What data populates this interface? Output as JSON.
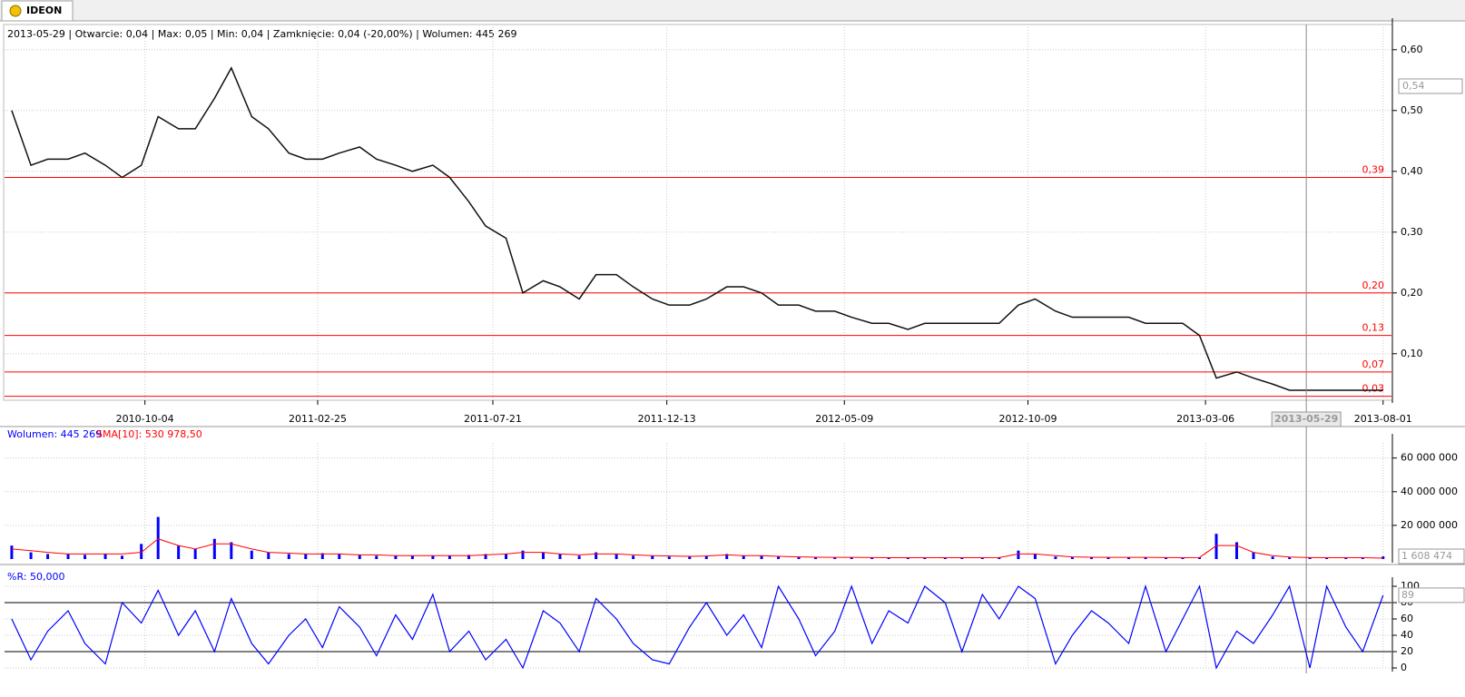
{
  "tab": {
    "title": "IDEON"
  },
  "chart_data": [
    {
      "type": "line",
      "title": "2013-05-29 | Otwarcie: 0,04 | Max: 0,05 | Min: 0,04 | Zamknięcie: 0,04 (-20,00%)  | Wolumen: 445 269",
      "color": "#111111",
      "x": [
        "2010-06-15",
        "2010-07-01",
        "2010-07-15",
        "2010-08-01",
        "2010-08-15",
        "2010-09-01",
        "2010-09-15",
        "2010-10-01",
        "2010-10-15",
        "2010-11-01",
        "2010-11-15",
        "2010-12-01",
        "2010-12-15",
        "2011-01-01",
        "2011-01-15",
        "2011-02-01",
        "2011-02-15",
        "2011-03-01",
        "2011-03-15",
        "2011-04-01",
        "2011-04-15",
        "2011-05-01",
        "2011-05-15",
        "2011-06-01",
        "2011-06-15",
        "2011-07-01",
        "2011-07-15",
        "2011-08-01",
        "2011-08-15",
        "2011-09-01",
        "2011-09-15",
        "2011-10-01",
        "2011-10-15",
        "2011-11-01",
        "2011-11-15",
        "2011-12-01",
        "2011-12-15",
        "2012-01-01",
        "2012-01-15",
        "2012-02-01",
        "2012-02-15",
        "2012-03-01",
        "2012-03-15",
        "2012-04-01",
        "2012-04-15",
        "2012-05-01",
        "2012-05-15",
        "2012-06-01",
        "2012-06-15",
        "2012-07-01",
        "2012-07-15",
        "2012-08-01",
        "2012-08-15",
        "2012-09-01",
        "2012-09-15",
        "2012-10-01",
        "2012-10-15",
        "2012-11-01",
        "2012-11-15",
        "2012-12-01",
        "2012-12-15",
        "2013-01-01",
        "2013-01-15",
        "2013-02-01",
        "2013-02-15",
        "2013-03-01",
        "2013-03-15",
        "2013-04-01",
        "2013-04-15",
        "2013-05-01",
        "2013-05-15",
        "2013-06-01",
        "2013-06-15",
        "2013-07-01",
        "2013-07-15",
        "2013-08-01"
      ],
      "values": [
        0.5,
        0.41,
        0.42,
        0.42,
        0.43,
        0.41,
        0.39,
        0.41,
        0.49,
        0.47,
        0.47,
        0.52,
        0.57,
        0.49,
        0.47,
        0.43,
        0.42,
        0.42,
        0.43,
        0.44,
        0.42,
        0.41,
        0.4,
        0.41,
        0.39,
        0.35,
        0.31,
        0.29,
        0.2,
        0.22,
        0.21,
        0.19,
        0.23,
        0.23,
        0.21,
        0.19,
        0.18,
        0.18,
        0.19,
        0.21,
        0.21,
        0.2,
        0.18,
        0.18,
        0.17,
        0.17,
        0.16,
        0.15,
        0.15,
        0.14,
        0.15,
        0.15,
        0.15,
        0.15,
        0.15,
        0.18,
        0.19,
        0.17,
        0.16,
        0.16,
        0.16,
        0.16,
        0.15,
        0.15,
        0.15,
        0.13,
        0.06,
        0.07,
        0.06,
        0.05,
        0.04,
        0.04,
        0.04,
        0.04,
        0.04,
        0.04
      ],
      "xlim": [
        "2010-06-09",
        "2013-08-08"
      ],
      "xticks": [
        "2010-10-04",
        "2011-02-25",
        "2011-07-21",
        "2011-12-13",
        "2012-05-09",
        "2012-10-09",
        "2013-03-06",
        "2013-08-01"
      ],
      "ylim": [
        0.025,
        0.637
      ],
      "yticks": [
        {
          "value": 0.1,
          "label": "0,10"
        },
        {
          "value": 0.2,
          "label": "0,20"
        },
        {
          "value": 0.3,
          "label": "0,30"
        },
        {
          "value": 0.4,
          "label": "0,40"
        },
        {
          "value": 0.5,
          "label": "0,50"
        },
        {
          "value": 0.6,
          "label": "0,60"
        }
      ],
      "grid": true,
      "levels_color": "#ff0000",
      "levels": [
        {
          "value": 0.39,
          "label": "0,39"
        },
        {
          "value": 0.2,
          "label": "0,20"
        },
        {
          "value": 0.13,
          "label": "0,13"
        },
        {
          "value": 0.07,
          "label": "0,07"
        },
        {
          "value": 0.03,
          "label": "0,03"
        }
      ],
      "cursor_date": "2013-05-29",
      "cursor_price": {
        "value": 0.54,
        "label": "0,54"
      }
    },
    {
      "type": "bar",
      "series": [
        {
          "name": "Wolumen: 445 269",
          "color": "#0000ff",
          "values": [
            8000000,
            4000000,
            3000000,
            3000000,
            2500000,
            3000000,
            2000000,
            9000000,
            25000000,
            8000000,
            6000000,
            12000000,
            10000000,
            5000000,
            4000000,
            3000000,
            3000000,
            3500000,
            3000000,
            2500000,
            2000000,
            2000000,
            2000000,
            2000000,
            2000000,
            2500000,
            3000000,
            3000000,
            5000000,
            4000000,
            3000000,
            2000000,
            4000000,
            3000000,
            2000000,
            2000000,
            1500000,
            1500000,
            2000000,
            3000000,
            2000000,
            2000000,
            1500000,
            1200000,
            1000000,
            1000000,
            1000000,
            800000,
            800000,
            800000,
            800000,
            800000,
            800000,
            800000,
            1000000,
            5000000,
            3000000,
            1500000,
            1200000,
            1000000,
            1000000,
            1000000,
            1000000,
            800000,
            800000,
            1000000,
            15000000,
            10000000,
            4000000,
            1500000,
            1000000,
            800000,
            800000,
            800000,
            800000,
            1608474
          ]
        },
        {
          "name": "SMA[10]: 530 978,50",
          "color": "#ff0000",
          "values": [
            6000000,
            5000000,
            4000000,
            3000000,
            3000000,
            3000000,
            3000000,
            4000000,
            12000000,
            8000000,
            6000000,
            9000000,
            9000000,
            6000000,
            4000000,
            3500000,
            3000000,
            3000000,
            3000000,
            2500000,
            2500000,
            2000000,
            2000000,
            2000000,
            2000000,
            2000000,
            2500000,
            3000000,
            4000000,
            4000000,
            3000000,
            2500000,
            3000000,
            3000000,
            2500000,
            2000000,
            1800000,
            1600000,
            1800000,
            2500000,
            2000000,
            2000000,
            1600000,
            1300000,
            1100000,
            1000000,
            1000000,
            900000,
            800000,
            800000,
            800000,
            800000,
            800000,
            800000,
            900000,
            3000000,
            3000000,
            2000000,
            1300000,
            1100000,
            1000000,
            1000000,
            1000000,
            900000,
            800000,
            900000,
            8000000,
            8000000,
            4000000,
            2000000,
            1200000,
            900000,
            800000,
            800000,
            800000,
            530978.5
          ]
        }
      ],
      "ylim": [
        0,
        69000000
      ],
      "yticks": [
        {
          "value": 20000000,
          "label": "20 000 000"
        },
        {
          "value": 40000000,
          "label": "40 000 000"
        },
        {
          "value": 60000000,
          "label": "60 000 000"
        }
      ],
      "last_value": {
        "value": 1608474,
        "label": "1 608 474"
      }
    },
    {
      "type": "line",
      "series": [
        {
          "name": "%R: 50,000",
          "color": "#0000ff",
          "values": [
            60,
            10,
            45,
            70,
            30,
            5,
            80,
            55,
            95,
            40,
            70,
            20,
            85,
            30,
            5,
            40,
            60,
            25,
            75,
            50,
            15,
            65,
            35,
            90,
            20,
            45,
            10,
            35,
            0,
            70,
            55,
            20,
            85,
            60,
            30,
            10,
            5,
            50,
            80,
            40,
            65,
            25,
            100,
            60,
            15,
            45,
            100,
            30,
            70,
            55,
            100,
            80,
            20,
            90,
            60,
            100,
            85,
            5,
            40,
            70,
            55,
            30,
            100,
            20,
            60,
            100,
            0,
            45,
            30,
            65,
            100,
            0,
            100,
            50,
            20,
            89
          ]
        }
      ],
      "ylim": [
        0,
        100
      ],
      "yticks": [
        0,
        20,
        40,
        60,
        80,
        100
      ],
      "levels": [
        20,
        80
      ],
      "levels_color": "#000000",
      "last_value": 89
    }
  ]
}
